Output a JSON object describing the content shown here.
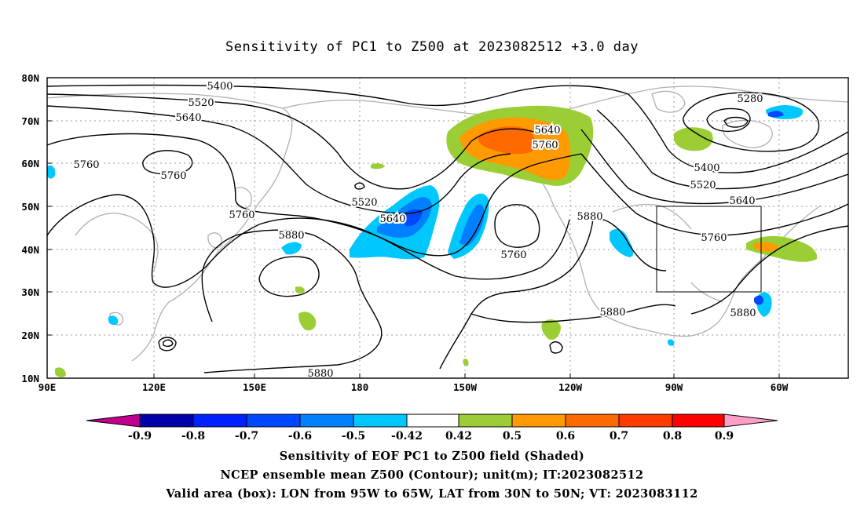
{
  "title": "Sensitivity of PC1 to Z500 at 2023082512 +3.0 day",
  "lat_ticks": [
    "80N",
    "70N",
    "60N",
    "50N",
    "40N",
    "30N",
    "20N",
    "10N"
  ],
  "lon_ticks": [
    "90E",
    "120E",
    "150E",
    "180",
    "150W",
    "120W",
    "90W",
    "60W"
  ],
  "contour_labels": [
    "5400",
    "5520",
    "5640",
    "5760",
    "5760",
    "5760",
    "5880",
    "5520",
    "5640",
    "5640",
    "5760",
    "5760",
    "5880",
    "5280",
    "5400",
    "5520",
    "5640",
    "5760",
    "5880",
    "5880",
    "5880"
  ],
  "colorbar": {
    "labels": [
      "-0.9",
      "-0.8",
      "-0.7",
      "-0.6",
      "-0.5",
      "-0.42",
      "0.42",
      "0.5",
      "0.6",
      "0.7",
      "0.8",
      "0.9"
    ],
    "colors": [
      "#0000a8",
      "#0020ff",
      "#0048ff",
      "#0080ff",
      "#00c8ff",
      "#ffffff",
      "#9ace34",
      "#ff9a00",
      "#ff6a00",
      "#ff3a00",
      "#ff0000"
    ],
    "low_end_color": "#c0008c",
    "high_end_color": "#ff9ec8"
  },
  "captions": [
    "Sensitivity of EOF PC1 to Z500 field (Shaded)",
    "NCEP ensemble mean Z500 (Contour); unit(m); IT:2023082512",
    "Valid area (box): LON from 95W to 65W, LAT from 30N to 50N; VT: 2023083112"
  ],
  "valid_box": {
    "lon": [
      "95W",
      "65W"
    ],
    "lat": [
      "30N",
      "50N"
    ]
  }
}
